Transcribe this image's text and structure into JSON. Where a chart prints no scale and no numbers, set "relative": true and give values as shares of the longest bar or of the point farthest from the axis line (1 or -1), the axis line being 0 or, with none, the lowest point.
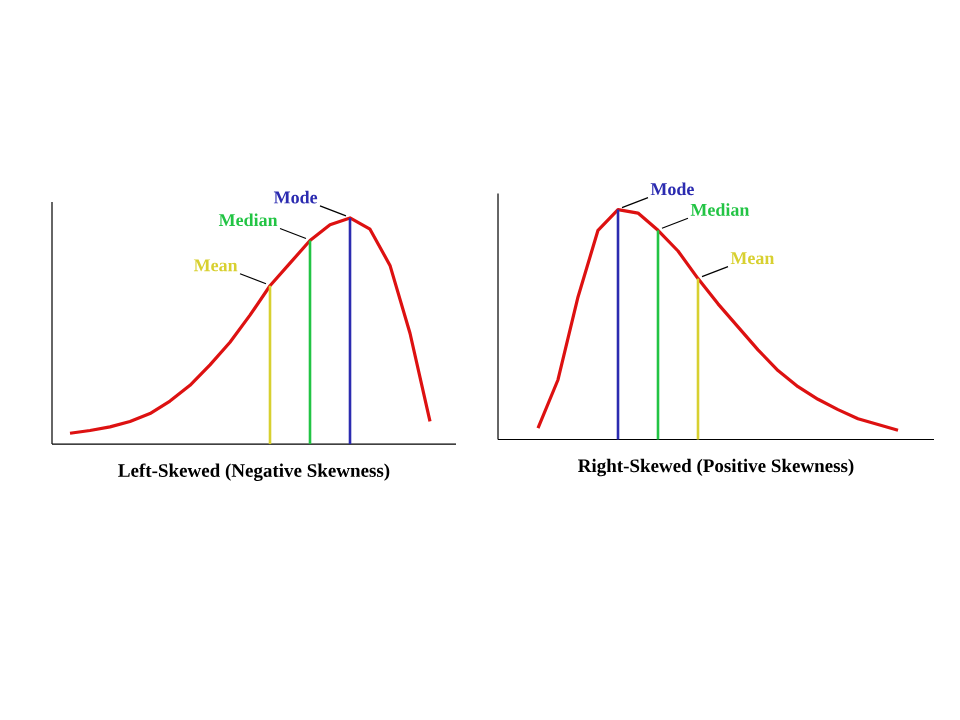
{
  "chart_data": [
    {
      "type": "line",
      "relative": true,
      "tick_labels": false,
      "xlabel": "Left-Skewed (Negative Skewness)",
      "color": "#dd1111",
      "categories": [
        null,
        null,
        null,
        null,
        null,
        null,
        null,
        null,
        null,
        null,
        null,
        null,
        null,
        null,
        null,
        null,
        null,
        null,
        null
      ],
      "values": [
        0.048,
        0.06,
        0.076,
        0.1,
        0.135,
        0.19,
        0.26,
        0.35,
        0.45,
        0.57,
        0.7,
        0.8,
        0.9,
        0.97,
        1.0,
        0.95,
        0.79,
        0.49,
        0.1
      ],
      "annotations": [
        "Mean",
        "Median",
        "Mode"
      ]
    },
    {
      "type": "line",
      "relative": true,
      "tick_labels": false,
      "xlabel": "Right-Skewed (Positive Skewness)",
      "color": "#dd1111",
      "categories": [
        null,
        null,
        null,
        null,
        null,
        null,
        null,
        null,
        null,
        null,
        null,
        null,
        null,
        null,
        null,
        null,
        null,
        null,
        null
      ],
      "values": [
        0.05,
        0.26,
        0.62,
        0.91,
        1.0,
        0.985,
        0.91,
        0.82,
        0.7,
        0.59,
        0.49,
        0.39,
        0.3,
        0.23,
        0.175,
        0.13,
        0.09,
        0.065,
        0.04
      ],
      "annotations": [
        "Mode",
        "Median",
        "Mean"
      ]
    }
  ]
}
